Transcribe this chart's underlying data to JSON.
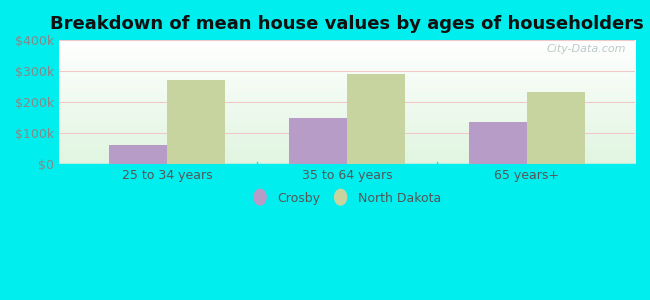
{
  "title": "Breakdown of mean house values by ages of householders",
  "categories": [
    "25 to 34 years",
    "35 to 64 years",
    "65 years+"
  ],
  "crosby_values": [
    62000,
    150000,
    137000
  ],
  "nd_values": [
    271000,
    291000,
    232000
  ],
  "crosby_color": "#b89cc8",
  "nd_color": "#c8d4a0",
  "ylim": [
    0,
    400000
  ],
  "yticks": [
    0,
    100000,
    200000,
    300000,
    400000
  ],
  "ytick_labels": [
    "$0",
    "$100k",
    "$200k",
    "$300k",
    "$400k"
  ],
  "background_color": "#00eeee",
  "legend_labels": [
    "Crosby",
    "North Dakota"
  ],
  "bar_width": 0.32,
  "title_fontsize": 13,
  "watermark": "City-Data.com",
  "grid_color": "#f0c8c8",
  "tick_color": "#888888",
  "label_color": "#555555"
}
